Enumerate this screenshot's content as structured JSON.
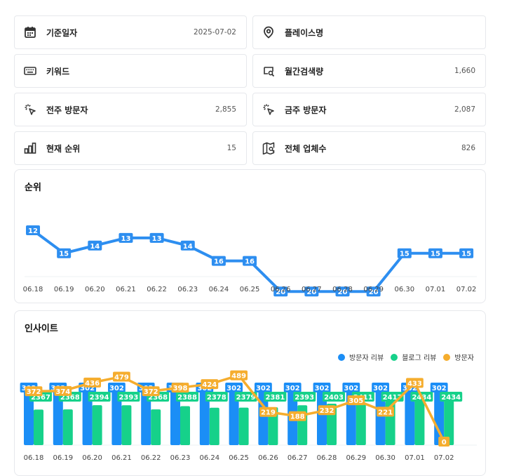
{
  "info_cards": {
    "base_date": {
      "label": "기준일자",
      "value": "2025-07-02",
      "icon": "calendar-icon"
    },
    "place_name": {
      "label": "플레이스명",
      "value": "",
      "icon": "location-pin-icon"
    },
    "keyword": {
      "label": "키워드",
      "value": "",
      "icon": "keyboard-icon"
    },
    "monthly_search": {
      "label": "월간검색량",
      "value": "1,660",
      "icon": "search-volume-icon"
    },
    "last_week_visitors": {
      "label": "전주 방문자",
      "value": "2,855",
      "icon": "cursor-click-icon"
    },
    "this_week_visitors": {
      "label": "금주 방문자",
      "value": "2,087",
      "icon": "cursor-click-icon"
    },
    "current_rank": {
      "label": "현재 순위",
      "value": "15",
      "icon": "bar-chart-icon"
    },
    "total_businesses": {
      "label": "전체 업체수",
      "value": "826",
      "icon": "map-search-icon"
    }
  },
  "rank_panel": {
    "title": "순위"
  },
  "insight_panel": {
    "title": "인사이트",
    "legend": {
      "visit_review": "방문자 리뷰",
      "blog_review": "블로그 리뷰",
      "visitors": "방문자"
    }
  },
  "colors": {
    "accent": "#2d8ef0",
    "bar_blue": "#1b8ef6",
    "bar_green": "#16d18a",
    "visitor_orange": "#f5ad2e",
    "text_muted": "#555555"
  },
  "chart_data": [
    {
      "type": "line",
      "title": "순위",
      "categories": [
        "06.18",
        "06.19",
        "06.20",
        "06.21",
        "06.22",
        "06.23",
        "06.24",
        "06.25",
        "06.26",
        "06.27",
        "06.28",
        "06.29",
        "06.30",
        "07.01",
        "07.02"
      ],
      "series": [
        {
          "values": [
            12,
            15,
            14,
            13,
            13,
            14,
            16,
            16,
            20,
            20,
            20,
            20,
            15,
            15,
            15
          ]
        }
      ],
      "y_inverted": true,
      "data_labels": true,
      "grid": false
    },
    {
      "type": "bar",
      "title": "인사이트",
      "categories": [
        "06.18",
        "06.19",
        "06.20",
        "06.21",
        "06.22",
        "06.23",
        "06.24",
        "06.25",
        "06.26",
        "06.27",
        "06.28",
        "06.29",
        "06.30",
        "07.01",
        "07.02"
      ],
      "series": [
        {
          "name": "방문자 리뷰",
          "type": "bar",
          "values": [
            302,
            302,
            302,
            302,
            302,
            302,
            302,
            302,
            302,
            302,
            302,
            302,
            302,
            302,
            302
          ]
        },
        {
          "name": "블로그 리뷰",
          "type": "bar",
          "values": [
            2367,
            2368,
            2394,
            2393,
            2368,
            2388,
            2378,
            2379,
            2381,
            2393,
            2403,
            2411,
            2417,
            2434,
            2434
          ]
        },
        {
          "name": "방문자",
          "type": "line",
          "values": [
            372,
            374,
            436,
            479,
            372,
            398,
            424,
            489,
            219,
            188,
            232,
            305,
            221,
            433,
            0
          ]
        }
      ],
      "legend_position": "top-right",
      "data_labels": true
    }
  ]
}
